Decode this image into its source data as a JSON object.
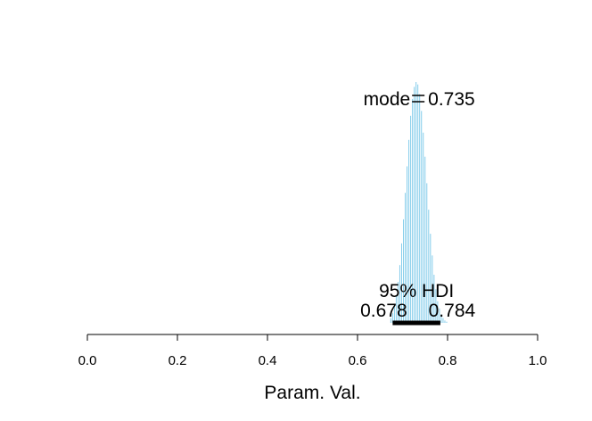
{
  "chart_data": {
    "type": "bar",
    "title": "",
    "xlabel": "Param. Val.",
    "ylabel": "",
    "xlim": [
      0.0,
      1.0
    ],
    "x_ticks": [
      "0.0",
      "0.2",
      "0.4",
      "0.6",
      "0.8",
      "1.0"
    ],
    "bar_color": "#87CEEB",
    "bar_width": 0.004,
    "bins": [
      0.674,
      0.678,
      0.682,
      0.686,
      0.69,
      0.694,
      0.698,
      0.702,
      0.706,
      0.71,
      0.714,
      0.718,
      0.722,
      0.726,
      0.73,
      0.734,
      0.738,
      0.742,
      0.746,
      0.75,
      0.754,
      0.758,
      0.762,
      0.766,
      0.77,
      0.774,
      0.778,
      0.782,
      0.786,
      0.79,
      0.794,
      0.798
    ],
    "heights": [
      0.02,
      0.04,
      0.07,
      0.11,
      0.17,
      0.24,
      0.33,
      0.43,
      0.54,
      0.65,
      0.76,
      0.86,
      0.93,
      0.98,
      1.0,
      0.99,
      0.95,
      0.88,
      0.79,
      0.69,
      0.58,
      0.47,
      0.37,
      0.28,
      0.2,
      0.14,
      0.09,
      0.06,
      0.035,
      0.02,
      0.01,
      0.005
    ],
    "mode": {
      "value": 0.735,
      "label": "mode",
      "text": "0.735"
    },
    "hdi": {
      "label": "95% HDI",
      "low": 0.678,
      "high": 0.784,
      "low_text": "0.678",
      "high_text": "0.784"
    }
  }
}
